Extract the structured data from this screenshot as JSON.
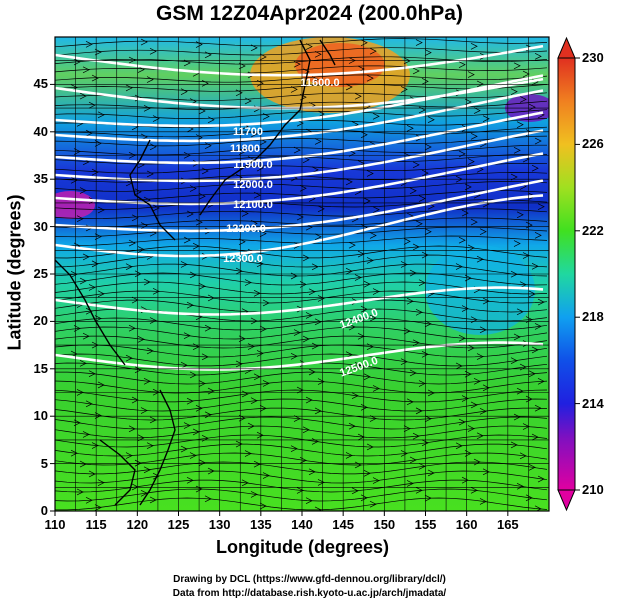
{
  "title": "GSM 12Z04Apr2024 (200.0hPa)",
  "map": {
    "x_label": "Longitude (degrees)",
    "y_label": "Latitude  (degrees)",
    "x_range": [
      110,
      170
    ],
    "y_range": [
      0,
      50
    ],
    "x_ticks": [
      "110",
      "115",
      "120",
      "125",
      "130",
      "135",
      "140",
      "145",
      "150",
      "155",
      "160",
      "165"
    ],
    "y_ticks": [
      "0",
      "5",
      "10",
      "15",
      "20",
      "25",
      "30",
      "35",
      "40",
      "45"
    ],
    "field": "temperature shading with streamlines and geopotential height contours",
    "contour_labels": [
      "11600.0",
      "11700",
      "11800",
      "11900.0",
      "12000.0",
      "12100.0",
      "12200.0",
      "12300.0",
      "12400.0",
      "12500.0"
    ],
    "colorbar": {
      "range": [
        210,
        230
      ],
      "ticks": [
        "210",
        "214",
        "218",
        "222",
        "226",
        "230"
      ],
      "colors": [
        "#e000a0",
        "#5000c0",
        "#1030e0",
        "#10a8e8",
        "#20d890",
        "#40e020",
        "#a0e020",
        "#f0c020",
        "#f08020",
        "#e03020"
      ]
    },
    "colors": {
      "contour": "#ffffff",
      "streamline": "#000000",
      "coastline": "#000000",
      "grid": "#000000"
    }
  },
  "credits": [
    "Drawing by DCL (https://www.gfd-dennou.org/library/dcl/)",
    "Data from http://database.rish.kyoto-u.ac.jp/arch/jmadata/"
  ]
}
